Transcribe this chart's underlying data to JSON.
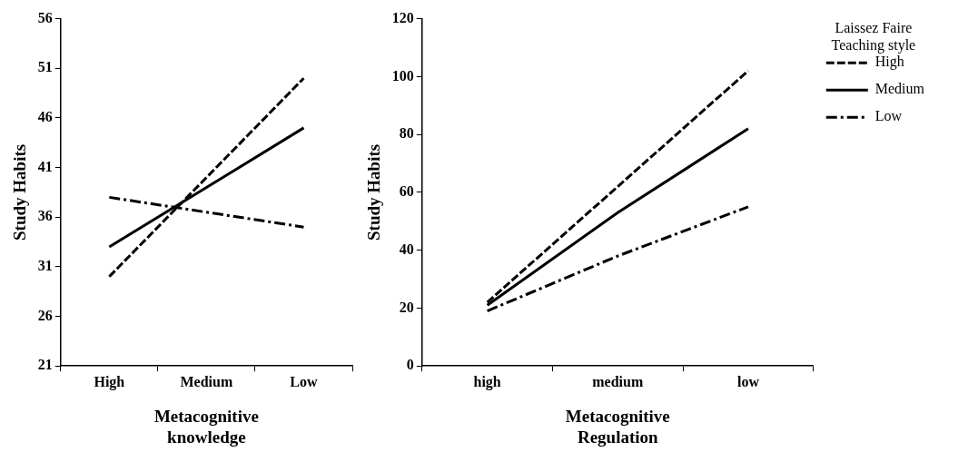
{
  "chart_data": [
    {
      "type": "line",
      "categories": [
        "High",
        "Medium",
        "Low"
      ],
      "xlabel": "Metacognitive knowledge",
      "ylabel": "Study Habits",
      "ylim": [
        21,
        56
      ],
      "yticks": [
        21,
        26,
        31,
        36,
        41,
        46,
        51,
        56
      ],
      "grid": false,
      "legend": false,
      "marker": "none",
      "series": [
        {
          "color": "#000000",
          "line_style": "dashed",
          "values": [
            30,
            40,
            50
          ]
        },
        {
          "color": "#000000",
          "line_style": "solid",
          "values": [
            33,
            39,
            45
          ]
        },
        {
          "color": "#000000",
          "line_style": "dashdot",
          "values": [
            38,
            36.5,
            35
          ]
        }
      ]
    },
    {
      "type": "line",
      "categories": [
        "high",
        "medium",
        "low"
      ],
      "xlabel": "Metacognitive Regulation",
      "ylabel": "Study Habits",
      "ylim": [
        0,
        120
      ],
      "yticks": [
        0,
        20,
        40,
        60,
        80,
        100,
        120
      ],
      "grid": false,
      "legend": "right",
      "legend_title": "Laissez Faire Teaching style",
      "marker": "none",
      "series": [
        {
          "name": "High",
          "color": "#000000",
          "line_style": "dashed",
          "values": [
            22,
            62,
            102
          ]
        },
        {
          "name": "Medium",
          "color": "#000000",
          "line_style": "solid",
          "values": [
            21,
            53,
            82
          ]
        },
        {
          "name": "Low",
          "color": "#000000",
          "line_style": "dashdot",
          "values": [
            19,
            38,
            55
          ]
        }
      ]
    }
  ]
}
